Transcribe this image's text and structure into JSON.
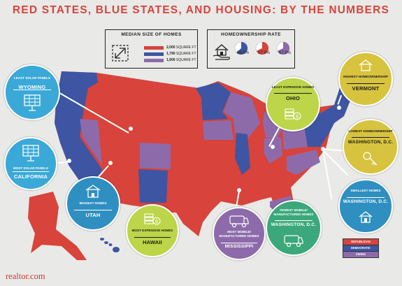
{
  "title": "RED STATES, BLUE STATES, AND HOUSING: BY THE NUMBERS",
  "colors": {
    "red": "#d8433b",
    "blue": "#3d55a3",
    "purple": "#8d6bab"
  },
  "median_box": {
    "heading": "MEDIAN SIZE OF HOMES",
    "rows": [
      {
        "value": "2,000",
        "unit": "SQUARE FT"
      },
      {
        "value": "1,790",
        "unit": "SQUARE FT"
      },
      {
        "value": "1,900",
        "unit": "SQUARE FT"
      }
    ]
  },
  "ownership_box": {
    "heading": "HOMEOWNERSHIP RATE",
    "rates": [
      {
        "label": "63.5%",
        "value": 63.5,
        "color": "blue"
      },
      {
        "label": "67.9%",
        "value": 67.9,
        "color": "red"
      },
      {
        "label": "67.8%",
        "value": 67.8,
        "color": "purple"
      }
    ]
  },
  "callouts": {
    "wyoming": {
      "sub": "LEAST SOLAR PANELS",
      "name": "WYOMING"
    },
    "california": {
      "sub": "MOST SOLAR PANELS",
      "name": "CALIFORNIA"
    },
    "utah": {
      "sub": "BIGGEST HOMES",
      "name": "UTAH"
    },
    "hawaii": {
      "sub": "MOST EXPENSIVE HOMES",
      "name": "HAWAII"
    },
    "mississippi": {
      "sub": "MOST MOBILE/ MANUFACTURED HOMES",
      "name": "MISSISSIPPI"
    },
    "ohio": {
      "sub": "LEAST EXPENSIVE HOMES",
      "name": "OHIO"
    },
    "vermont": {
      "sub": "HIGHEST HOMEOWNERSHIP",
      "name": "VERMONT"
    },
    "dc_lowest": {
      "sub": "LOWEST HOMEOWNERSHIP",
      "name": "WASHINGTON, D.C."
    },
    "dc_smallest": {
      "sub": "SMALLEST HOMES",
      "name": "WASHINGTON, D.C."
    },
    "dc_mobile": {
      "sub": "FEWEST MOBILE/ MANUFACTURED HOMES",
      "name": "WASHINGTON, D.C."
    }
  },
  "key": {
    "republican": "REPUBLICAN",
    "democratic": "DEMOCRATIC",
    "swing": "SWING"
  },
  "logo": "realtor.com"
}
